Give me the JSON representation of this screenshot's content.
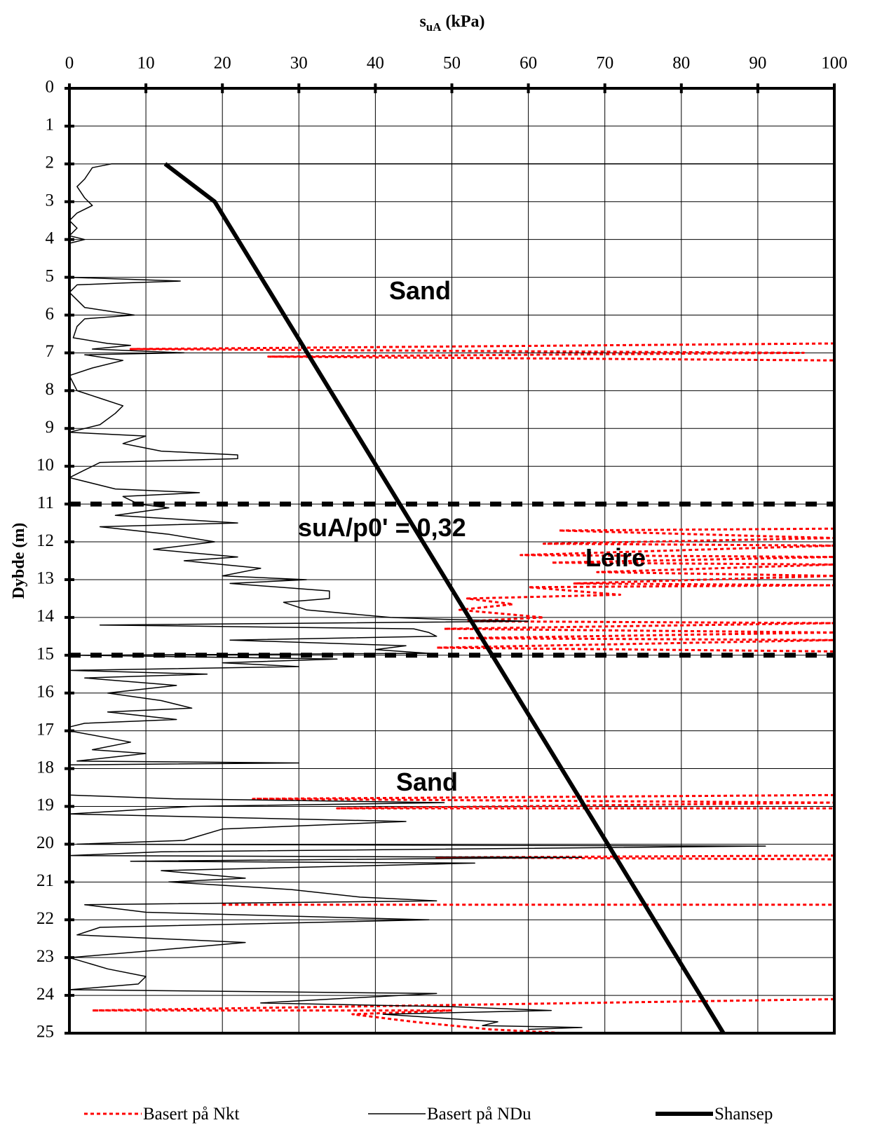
{
  "chart_data": {
    "type": "line",
    "x_label": {
      "main": "s",
      "sub": "uA",
      "unit": "(kPa)"
    },
    "y_label": "Dybde (m)",
    "xlim": [
      0,
      100
    ],
    "xticks": [
      0,
      10,
      20,
      30,
      40,
      50,
      60,
      70,
      80,
      90,
      100
    ],
    "ylim": [
      0,
      25
    ],
    "yticks": [
      0,
      1,
      2,
      3,
      4,
      5,
      6,
      7,
      8,
      9,
      10,
      11,
      12,
      13,
      14,
      15,
      16,
      17,
      18,
      19,
      20,
      21,
      22,
      23,
      24,
      25
    ],
    "y_inverted": true,
    "grid": true,
    "layer_boundaries": [
      11,
      15
    ],
    "annotations": [
      "Sand",
      "suA/p0' = 0,32",
      "Leire",
      "Sand"
    ],
    "series": [
      {
        "name": "Basert på Nkt",
        "color": "#ff0000",
        "dash": "dotted",
        "width": 3,
        "x": [
          100,
          8,
          96,
          26,
          100,
          null,
          100,
          64,
          100,
          62,
          100,
          59,
          100,
          63,
          100,
          69,
          100,
          66,
          100,
          60,
          72,
          52,
          58,
          51,
          62,
          52,
          100,
          49,
          100,
          51,
          100,
          48,
          100,
          null,
          100,
          24,
          100,
          35,
          100,
          null,
          100,
          48,
          100,
          null,
          20,
          100,
          null,
          100,
          3,
          50,
          37,
          45,
          55,
          65
        ],
        "y": [
          6.75,
          6.9,
          7.0,
          7.1,
          7.2,
          null,
          11.65,
          11.7,
          11.9,
          12.05,
          12.1,
          12.35,
          12.4,
          12.55,
          12.6,
          12.8,
          12.9,
          13.1,
          13.15,
          13.2,
          13.4,
          13.5,
          13.65,
          13.8,
          14.0,
          14.1,
          14.15,
          14.3,
          14.4,
          14.55,
          14.6,
          14.8,
          14.9,
          null,
          18.7,
          18.8,
          18.9,
          19.05,
          19.05,
          null,
          20.3,
          20.35,
          20.4,
          null,
          21.6,
          21.6,
          null,
          24.1,
          24.4,
          24.4,
          24.5,
          24.7,
          24.9,
          25.0
        ]
      },
      {
        "name": "Basert på NDu",
        "color": "#000000",
        "dash": "solid",
        "width": 1.5,
        "x": [
          100,
          5.5,
          3,
          2,
          1,
          2,
          3,
          1,
          0,
          1,
          0,
          2,
          0,
          0,
          0,
          14.5,
          7,
          1,
          0,
          2,
          8.5,
          2,
          1,
          0.5,
          5,
          8,
          3,
          15,
          2,
          7,
          3,
          0,
          1,
          4,
          7,
          6,
          4,
          0,
          10,
          7,
          12,
          22,
          22,
          4,
          2,
          0,
          6,
          17,
          7,
          9,
          13,
          6,
          22,
          4,
          13,
          19,
          11,
          22,
          15,
          25,
          20,
          31,
          21,
          34,
          34,
          28,
          31,
          42,
          49,
          60,
          4,
          45,
          47,
          48,
          21,
          44,
          40,
          47,
          1,
          35,
          20,
          30,
          0,
          18,
          2,
          14,
          5,
          12,
          16,
          5,
          14,
          2,
          0,
          0,
          8,
          3,
          10,
          1,
          30,
          0,
          0,
          14,
          49,
          16,
          0,
          44,
          20,
          15,
          1,
          91,
          12,
          0,
          67,
          8,
          53,
          12,
          23,
          13,
          29,
          38,
          48,
          2,
          10,
          47,
          4,
          1,
          23,
          6,
          0,
          5,
          10,
          9,
          0,
          48,
          34,
          25,
          50,
          63,
          41,
          56,
          54,
          67,
          60
        ],
        "y": [
          2.0,
          2.0,
          2.1,
          2.4,
          2.6,
          2.9,
          3.1,
          3.3,
          3.5,
          3.7,
          3.9,
          4.0,
          4.1,
          4.5,
          5.0,
          5.1,
          5.15,
          5.2,
          5.4,
          5.8,
          6.0,
          6.1,
          6.3,
          6.6,
          6.75,
          6.8,
          6.9,
          7.0,
          7.05,
          7.2,
          7.4,
          7.6,
          8.0,
          8.2,
          8.4,
          8.6,
          8.9,
          9.1,
          9.2,
          9.4,
          9.6,
          9.7,
          9.8,
          9.9,
          10.1,
          10.3,
          10.6,
          10.7,
          10.8,
          11.0,
          11.1,
          11.3,
          11.5,
          11.6,
          11.8,
          12.0,
          12.2,
          12.4,
          12.5,
          12.7,
          12.9,
          13.0,
          13.1,
          13.3,
          13.5,
          13.6,
          13.8,
          14.0,
          14.05,
          14.1,
          14.2,
          14.3,
          14.4,
          14.5,
          14.6,
          14.75,
          14.85,
          14.95,
          15.0,
          15.1,
          15.2,
          15.3,
          15.4,
          15.5,
          15.6,
          15.8,
          16.0,
          16.2,
          16.4,
          16.5,
          16.7,
          16.8,
          16.9,
          17.0,
          17.3,
          17.5,
          17.6,
          17.8,
          17.85,
          17.9,
          18.7,
          18.8,
          18.9,
          19.0,
          19.2,
          19.4,
          19.6,
          19.9,
          20.0,
          20.05,
          20.2,
          20.3,
          20.35,
          20.45,
          20.5,
          20.7,
          20.9,
          21.0,
          21.2,
          21.4,
          21.5,
          21.6,
          21.8,
          22.0,
          22.2,
          22.4,
          22.6,
          22.9,
          23.0,
          23.3,
          23.5,
          23.7,
          23.85,
          23.95,
          24.1,
          24.2,
          24.3,
          24.4,
          24.5,
          24.7,
          24.8,
          24.85,
          24.9
        ]
      },
      {
        "name": "Shansep",
        "color": "#000000",
        "dash": "solid",
        "width": 6,
        "x": [
          12.5,
          19,
          85.5
        ],
        "y": [
          2,
          3,
          25
        ]
      }
    ]
  }
}
